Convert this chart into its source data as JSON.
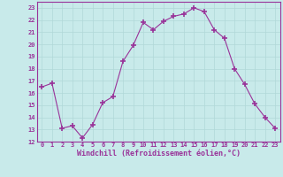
{
  "x": [
    0,
    1,
    2,
    3,
    4,
    5,
    6,
    7,
    8,
    9,
    10,
    11,
    12,
    13,
    14,
    15,
    16,
    17,
    18,
    19,
    20,
    21,
    22,
    23
  ],
  "y": [
    16.5,
    16.8,
    13.1,
    13.3,
    12.3,
    13.4,
    15.2,
    15.7,
    18.6,
    19.9,
    21.8,
    21.2,
    21.9,
    22.3,
    22.5,
    23.0,
    22.7,
    21.2,
    20.5,
    18.0,
    16.7,
    15.1,
    14.0,
    13.1
  ],
  "line_color": "#993399",
  "marker": "+",
  "marker_size": 4,
  "bg_color": "#c8eaea",
  "grid_color": "#b0d8d8",
  "xlabel": "Windchill (Refroidissement éolien,°C)",
  "xlabel_color": "#993399",
  "tick_color": "#993399",
  "ylim": [
    12,
    23.5
  ],
  "yticks": [
    12,
    13,
    14,
    15,
    16,
    17,
    18,
    19,
    20,
    21,
    22,
    23
  ],
  "xticks": [
    0,
    1,
    2,
    3,
    4,
    5,
    6,
    7,
    8,
    9,
    10,
    11,
    12,
    13,
    14,
    15,
    16,
    17,
    18,
    19,
    20,
    21,
    22,
    23
  ],
  "xlim": [
    -0.5,
    23.5
  ],
  "font_family": "monospace",
  "tick_fontsize": 5.0,
  "xlabel_fontsize": 6.0
}
